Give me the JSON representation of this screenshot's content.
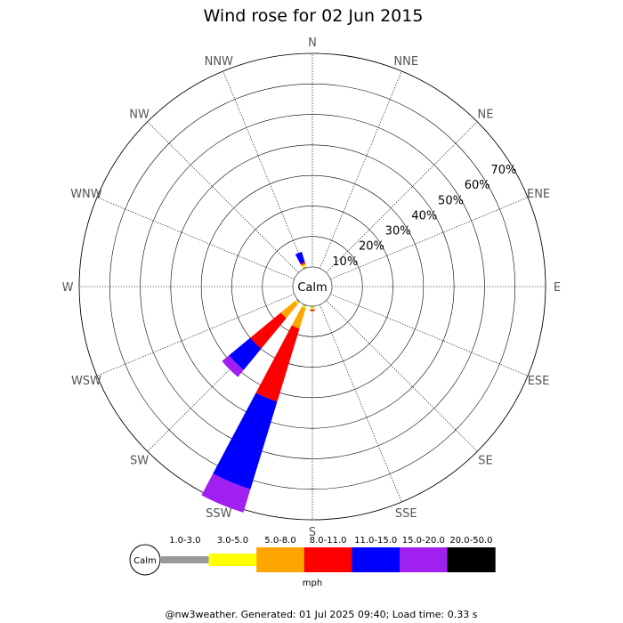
{
  "chart_data": {
    "type": "windrose",
    "title": "Wind rose for 02 Jun 2015",
    "directions": [
      "N",
      "NNE",
      "NE",
      "ENE",
      "E",
      "ESE",
      "SE",
      "SSE",
      "S",
      "SSW",
      "SW",
      "WSW",
      "W",
      "WNW",
      "NW",
      "NNW"
    ],
    "ring_labels": [
      "10%",
      "20%",
      "30%",
      "40%",
      "50%",
      "60%",
      "70%"
    ],
    "ring_values": [
      10,
      20,
      30,
      40,
      50,
      60,
      70
    ],
    "rmax": 70,
    "calm_label": "Calm",
    "speed_bins": [
      {
        "label": "1.0-3.0",
        "color": "#999999"
      },
      {
        "label": "3.0-5.0",
        "color": "#ffff00"
      },
      {
        "label": "5.0-8.0",
        "color": "#ffa500"
      },
      {
        "label": "8.0-11.0",
        "color": "#ff0000"
      },
      {
        "label": "11.0-15.0",
        "color": "#0000ff"
      },
      {
        "label": "15.0-20.0",
        "color": "#a020f0"
      },
      {
        "label": "20.0-50.0",
        "color": "#000000"
      }
    ],
    "units": "mph",
    "series": [
      {
        "direction": "NNW",
        "cumulative": [
          0.5,
          1.0,
          1.5,
          2.0,
          5.5,
          5.5,
          5.5
        ]
      },
      {
        "direction": "S",
        "cumulative": [
          0.4,
          0.8,
          1.2,
          1.6,
          1.6,
          1.6,
          1.6
        ]
      },
      {
        "direction": "SSW",
        "cumulative": [
          0.5,
          1.0,
          8.0,
          33.0,
          63.0,
          71.0,
          71.0
        ]
      },
      {
        "direction": "SW",
        "cumulative": [
          0.5,
          1.0,
          7.0,
          20.0,
          29.0,
          32.0,
          32.0
        ]
      }
    ]
  },
  "footer": "@nw3weather. Generated: 01 Jul 2025 09:40; Load time: 0.33 s"
}
